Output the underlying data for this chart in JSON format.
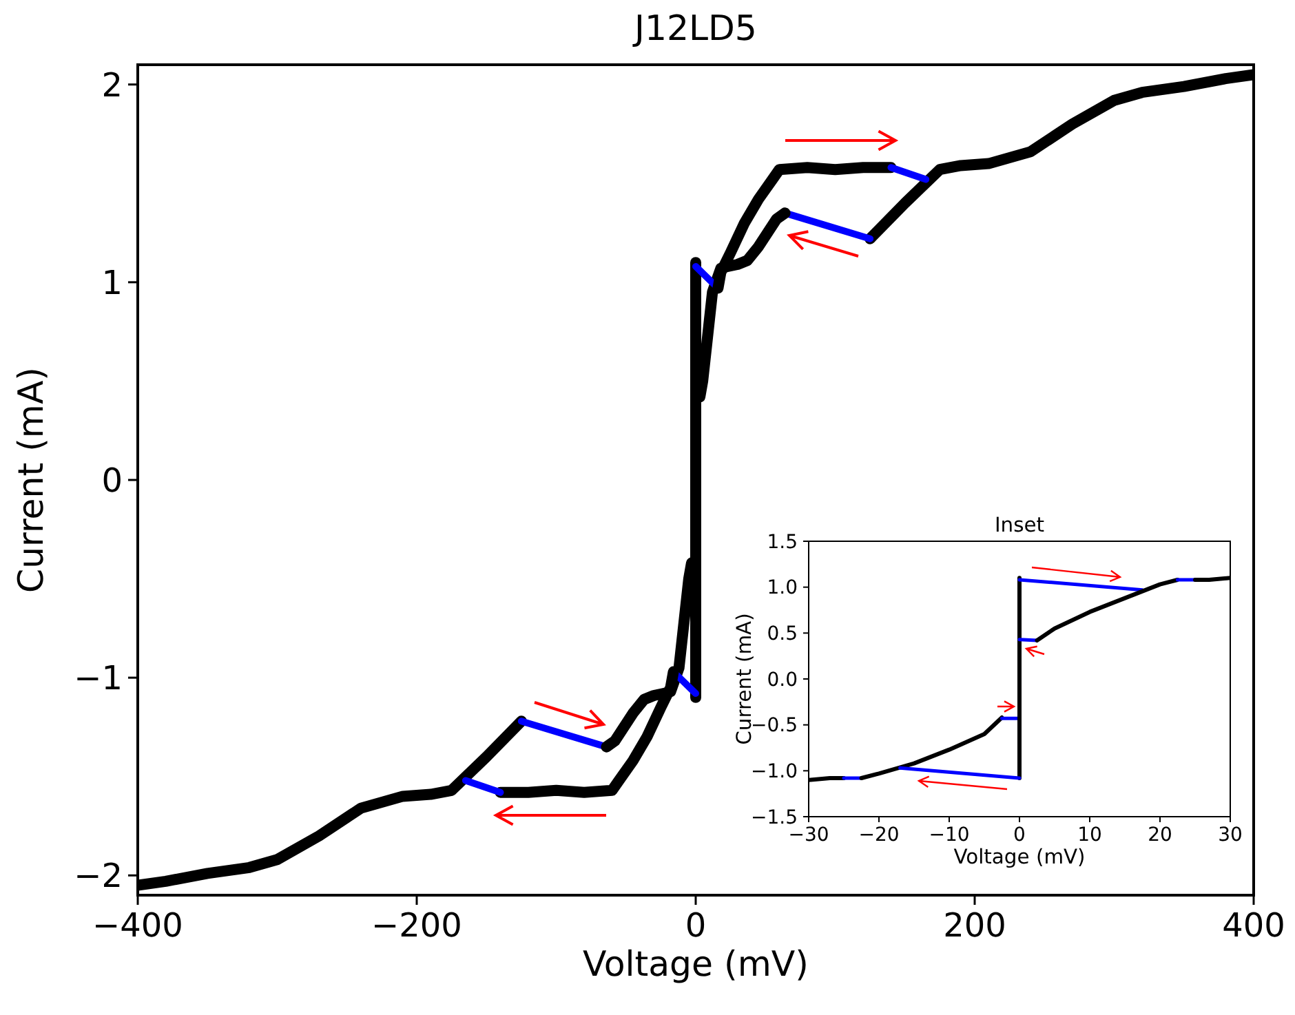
{
  "chart_data": [
    {
      "type": "line",
      "title": "J12LD5",
      "xlabel": "Voltage (mV)",
      "ylabel": "Current (mA)",
      "xlim": [
        -400,
        400
      ],
      "ylim": [
        -2.1,
        2.1
      ],
      "xticks": [
        {
          "value": -400,
          "label": "−400"
        },
        {
          "value": -200,
          "label": "−200"
        },
        0,
        200,
        400
      ],
      "yticks": [
        {
          "value": -2,
          "label": "−2"
        },
        {
          "value": -1,
          "label": "−1"
        },
        0,
        1,
        2
      ],
      "series": [
        {
          "color": "#000000",
          "x": [
            -400,
            -380,
            -350,
            -320,
            -300,
            -270,
            -240,
            -210,
            -190,
            -175,
            -150,
            -125
          ],
          "values": [
            -2.05,
            -2.03,
            -1.99,
            -1.96,
            -1.92,
            -1.8,
            -1.66,
            -1.6,
            -1.59,
            -1.57,
            -1.4,
            -1.22
          ]
        },
        {
          "color": "#0000ff",
          "x": [
            -125,
            -64
          ],
          "values": [
            -1.22,
            -1.35
          ]
        },
        {
          "color": "#000000",
          "x": [
            -64,
            -58,
            -45,
            -37,
            -30,
            -23,
            -18,
            -12,
            -5,
            -3
          ],
          "values": [
            -1.35,
            -1.32,
            -1.18,
            -1.11,
            -1.09,
            -1.08,
            -1.07,
            -0.95,
            -0.5,
            -0.42
          ]
        },
        {
          "color": "#000000",
          "x": [
            0,
            0
          ],
          "values": [
            -1.1,
            1.1
          ]
        },
        {
          "color": "#0000ff",
          "x": [
            0,
            -16
          ],
          "values": [
            -1.08,
            -0.97
          ]
        },
        {
          "color": "#000000",
          "x": [
            -16,
            -18,
            -25,
            -35,
            -45,
            -55,
            -60,
            -80,
            -100,
            -120,
            -140
          ],
          "values": [
            -0.97,
            -1.05,
            -1.15,
            -1.3,
            -1.42,
            -1.52,
            -1.57,
            -1.58,
            -1.57,
            -1.58,
            -1.58
          ]
        },
        {
          "color": "#0000ff",
          "x": [
            -140,
            -165
          ],
          "values": [
            -1.58,
            -1.52
          ]
        },
        {
          "color": "#000000",
          "x": [
            400,
            380,
            350,
            320,
            300,
            270,
            240,
            210,
            190,
            175,
            150,
            125
          ],
          "values": [
            2.05,
            2.03,
            1.99,
            1.96,
            1.92,
            1.8,
            1.66,
            1.6,
            1.59,
            1.57,
            1.4,
            1.22
          ]
        },
        {
          "color": "#0000ff",
          "x": [
            125,
            64
          ],
          "values": [
            1.22,
            1.35
          ]
        },
        {
          "color": "#000000",
          "x": [
            64,
            58,
            45,
            37,
            30,
            23,
            18,
            12,
            5,
            3
          ],
          "values": [
            1.35,
            1.32,
            1.18,
            1.11,
            1.09,
            1.08,
            1.07,
            0.95,
            0.5,
            0.42
          ]
        },
        {
          "color": "#0000ff",
          "x": [
            0,
            16
          ],
          "values": [
            1.08,
            0.97
          ]
        },
        {
          "color": "#000000",
          "x": [
            16,
            18,
            25,
            35,
            45,
            55,
            60,
            80,
            100,
            120,
            140
          ],
          "values": [
            0.97,
            1.05,
            1.15,
            1.3,
            1.42,
            1.52,
            1.57,
            1.58,
            1.57,
            1.58,
            1.58
          ]
        },
        {
          "color": "#0000ff",
          "x": [
            140,
            165
          ],
          "values": [
            1.58,
            1.52
          ]
        }
      ]
    },
    {
      "type": "line",
      "title": "Inset",
      "xlabel": "Voltage (mV)",
      "ylabel": "Current (mA)",
      "xlim": [
        -30,
        30
      ],
      "ylim": [
        -1.5,
        1.5
      ],
      "xticks": [
        {
          "value": -30,
          "label": "−30"
        },
        {
          "value": -20,
          "label": "−20"
        },
        {
          "value": -10,
          "label": "−10"
        },
        0,
        10,
        20,
        30
      ],
      "yticks": [
        {
          "value": -1.5,
          "label": "−1.5"
        },
        {
          "value": -1,
          "label": "−1.0"
        },
        {
          "value": -0.5,
          "label": "−0.5"
        },
        {
          "value": 0,
          "label": "0.0"
        },
        {
          "value": 0.5,
          "label": "0.5"
        },
        {
          "value": 1,
          "label": "1.0"
        },
        {
          "value": 1.5,
          "label": "1.5"
        }
      ],
      "series": [
        {
          "color": "#000000",
          "x": [
            -30,
            -27,
            -25
          ],
          "values": [
            -1.1,
            -1.08,
            -1.08
          ]
        },
        {
          "color": "#0000ff",
          "x": [
            -25,
            -22.5
          ],
          "values": [
            -1.08,
            -1.08
          ]
        },
        {
          "color": "#000000",
          "x": [
            -22.5,
            -20,
            -15,
            -10,
            -5,
            -2.5
          ],
          "values": [
            -1.08,
            -1.03,
            -0.92,
            -0.77,
            -0.6,
            -0.42
          ]
        },
        {
          "color": "#0000ff",
          "x": [
            -2.5,
            0
          ],
          "values": [
            -0.43,
            -0.43
          ]
        },
        {
          "color": "#000000",
          "x": [
            0,
            0
          ],
          "values": [
            -1.08,
            1.1
          ]
        },
        {
          "color": "#0000ff",
          "x": [
            0,
            17.5
          ],
          "values": [
            1.08,
            0.97
          ]
        },
        {
          "color": "#0000ff",
          "x": [
            0,
            -17
          ],
          "values": [
            -1.08,
            -0.97
          ]
        },
        {
          "color": "#0000ff",
          "x": [
            0,
            2.5
          ],
          "values": [
            0.43,
            0.42
          ]
        },
        {
          "color": "#000000",
          "x": [
            2.5,
            5,
            10,
            15,
            20,
            22.5
          ],
          "values": [
            0.42,
            0.55,
            0.73,
            0.88,
            1.03,
            1.08
          ]
        },
        {
          "color": "#0000ff",
          "x": [
            22.5,
            25
          ],
          "values": [
            1.08,
            1.08
          ]
        },
        {
          "color": "#000000",
          "x": [
            25,
            27,
            30
          ],
          "values": [
            1.08,
            1.08,
            1.1
          ]
        }
      ]
    }
  ]
}
